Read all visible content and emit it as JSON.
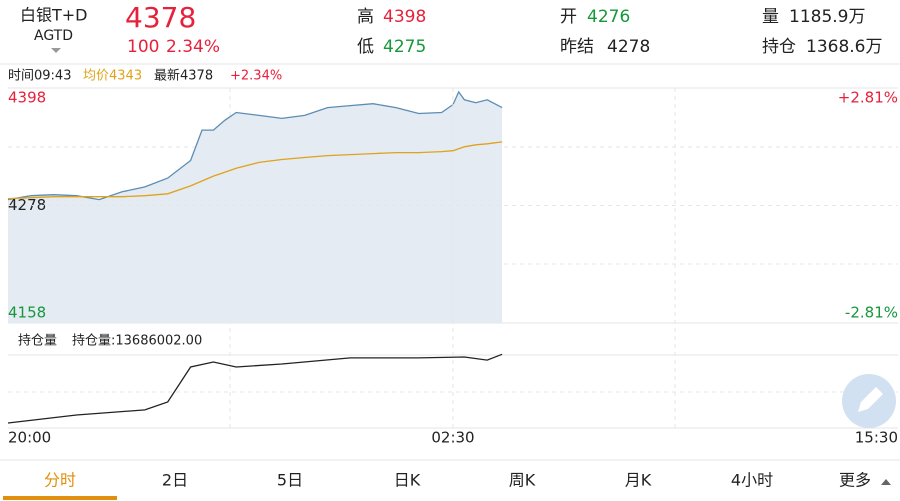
{
  "header": {
    "name": "白银T+D",
    "code": "AGTD",
    "price": "4378",
    "change": "100",
    "change_pct": "2.34%",
    "stats": [
      {
        "label": "高",
        "value": "4398"
      },
      {
        "label": "低",
        "value": "4275"
      },
      {
        "label": "开",
        "value": "4276"
      },
      {
        "label": "昨结",
        "value": "4278"
      },
      {
        "label": "量",
        "value": "1185.9万"
      },
      {
        "label": "持仓",
        "value": "1368.6万"
      }
    ]
  },
  "info": {
    "time": "时间09:43",
    "avg": "均价4343",
    "latest": "最新4378",
    "pct": "+2.34%"
  },
  "chart_data": [
    {
      "type": "line",
      "x": [
        0,
        20,
        40,
        60,
        80,
        100,
        120,
        140,
        160,
        170,
        180,
        190,
        200,
        220,
        240,
        260,
        280,
        300,
        320,
        340,
        360,
        380,
        390,
        395,
        400,
        410,
        420,
        433
      ],
      "xlim": [
        0,
        780
      ],
      "xticks": [
        {
          "value": 0,
          "label": "20:00"
        },
        {
          "value": 390,
          "label": "02:30"
        },
        {
          "value": 780,
          "label": "15:30"
        }
      ],
      "ylim": [
        4158,
        4398
      ],
      "yticks": [
        4158,
        4278,
        4398
      ],
      "y2lim": [
        -2.81,
        2.81
      ],
      "y2ticks": [
        {
          "value": -2.81,
          "label": "-2.81%"
        },
        {
          "value": 2.81,
          "label": "+2.81%"
        }
      ],
      "series": [
        {
          "name": "最新",
          "color": "#5b8db3",
          "values": [
            4284,
            4288,
            4289,
            4288,
            4284,
            4292,
            4297,
            4306,
            4324,
            4355,
            4355,
            4365,
            4373,
            4370,
            4367,
            4370,
            4378,
            4380,
            4382,
            4378,
            4372,
            4373,
            4381,
            4394,
            4386,
            4383,
            4386,
            4378
          ]
        },
        {
          "name": "均价",
          "color": "#e0a21a",
          "values": [
            4285,
            4286,
            4287,
            4287,
            4287,
            4287,
            4288,
            4290,
            4298,
            4303,
            4308,
            4312,
            4316,
            4322,
            4325,
            4327,
            4329,
            4330,
            4331,
            4332,
            4332,
            4333,
            4334,
            4336,
            4338,
            4340,
            4341,
            4343
          ]
        }
      ]
    },
    {
      "type": "line",
      "title": "持仓量",
      "subtitle": "持仓量:13686002.00",
      "x": [
        0,
        60,
        120,
        140,
        160,
        180,
        200,
        240,
        300,
        360,
        400,
        420,
        433
      ],
      "xlim": [
        0,
        780
      ],
      "ylim": [
        13100000,
        13720000
      ],
      "series": [
        {
          "color": "#222222",
          "values": [
            13140000,
            13203000,
            13244000,
            13307000,
            13585000,
            13625000,
            13585000,
            13609000,
            13657000,
            13657000,
            13664000,
            13640000,
            13686002
          ]
        }
      ]
    }
  ],
  "tabs": [
    "分时",
    "2日",
    "5日",
    "日K",
    "周K",
    "月K",
    "4小时",
    "更多"
  ],
  "selected_tab": 0
}
